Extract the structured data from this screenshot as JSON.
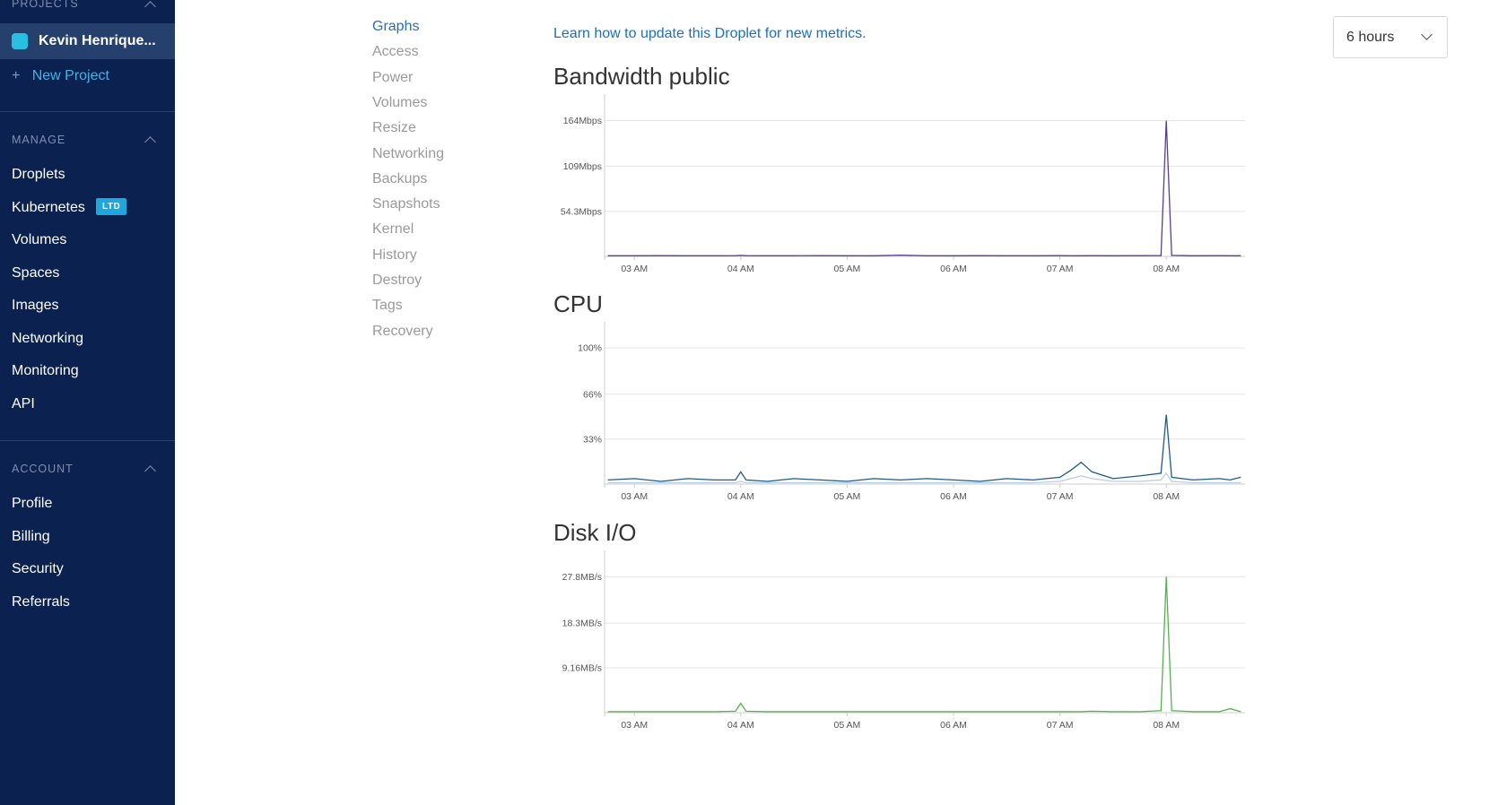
{
  "sidebar": {
    "projects_heading": "PROJECTS",
    "project_name": "Kevin Henrique...",
    "new_project": "New Project",
    "manage_heading": "MANAGE",
    "manage_items": [
      "Droplets",
      "Kubernetes",
      "Volumes",
      "Spaces",
      "Images",
      "Networking",
      "Monitoring",
      "API"
    ],
    "ltd_badge": "LTD",
    "account_heading": "ACCOUNT",
    "account_items": [
      "Profile",
      "Billing",
      "Security",
      "Referrals"
    ]
  },
  "secondary_nav": [
    "Graphs",
    "Access",
    "Power",
    "Volumes",
    "Resize",
    "Networking",
    "Backups",
    "Snapshots",
    "Kernel",
    "History",
    "Destroy",
    "Tags",
    "Recovery"
  ],
  "header": {
    "learn_link": "Learn how to update this Droplet for new metrics.",
    "range": "6 hours"
  },
  "chart_data": [
    {
      "type": "line",
      "title": "Bandwidth public",
      "x": [
        2.75,
        3,
        3.25,
        3.5,
        3.75,
        3.95,
        4,
        4.05,
        4.25,
        4.5,
        4.75,
        5,
        5.25,
        5.5,
        5.75,
        6,
        6.25,
        6.5,
        6.75,
        7,
        7.1,
        7.2,
        7.3,
        7.5,
        7.75,
        7.95,
        8,
        8.05,
        8.25,
        8.5,
        8.6,
        8.7
      ],
      "series": [
        {
          "color": "#5b3e8c",
          "values": [
            0.8,
            0.8,
            0.9,
            0.8,
            0.8,
            0.9,
            1.2,
            0.9,
            0.8,
            0.8,
            0.9,
            0.8,
            0.8,
            1.5,
            0.8,
            0.8,
            0.9,
            0.8,
            0.8,
            0.9,
            0.8,
            0.8,
            0.9,
            0.8,
            0.9,
            1,
            164,
            1.2,
            0.8,
            0.9,
            0.8,
            0.8
          ]
        }
      ],
      "xlim": [
        2.72,
        8.74
      ],
      "xticks": [
        {
          "value": 3,
          "label": "03 AM"
        },
        {
          "value": 4,
          "label": "04 AM"
        },
        {
          "value": 5,
          "label": "05 AM"
        },
        {
          "value": 6,
          "label": "06 AM"
        },
        {
          "value": 7,
          "label": "07 AM"
        },
        {
          "value": 8,
          "label": "08 AM"
        }
      ],
      "ylim": [
        0,
        181
      ],
      "yticks": [
        {
          "value": 54.3,
          "label": "54.3Mbps"
        },
        {
          "value": 109,
          "label": "109Mbps"
        },
        {
          "value": 164,
          "label": "164Mbps"
        }
      ],
      "grid": true
    },
    {
      "type": "line",
      "title": "CPU",
      "x": [
        2.75,
        3,
        3.25,
        3.5,
        3.75,
        3.95,
        4,
        4.05,
        4.25,
        4.5,
        4.75,
        5,
        5.25,
        5.5,
        5.75,
        6,
        6.25,
        6.5,
        6.75,
        7,
        7.1,
        7.2,
        7.3,
        7.5,
        7.75,
        7.95,
        8,
        8.05,
        8.25,
        8.5,
        8.6,
        8.7
      ],
      "series": [
        {
          "color": "#b8cde6",
          "values": [
            1,
            1,
            1,
            1,
            1,
            1,
            2,
            1,
            1,
            1,
            1,
            1,
            1,
            1,
            1,
            1,
            1,
            1,
            1,
            2,
            4,
            6,
            4,
            2,
            2,
            3,
            8,
            2,
            1,
            1,
            1,
            1
          ]
        },
        {
          "color": "#1f5a8c",
          "values": [
            3,
            4,
            2,
            4,
            3,
            3,
            9,
            3,
            2,
            4,
            3,
            2,
            4,
            3,
            4,
            3,
            2,
            4,
            3,
            5,
            10,
            16,
            9,
            4,
            6,
            8,
            51,
            5,
            3,
            4,
            3,
            5
          ]
        }
      ],
      "xlim": [
        2.72,
        8.74
      ],
      "xticks": [
        {
          "value": 3,
          "label": "03 AM"
        },
        {
          "value": 4,
          "label": "04 AM"
        },
        {
          "value": 5,
          "label": "05 AM"
        },
        {
          "value": 6,
          "label": "06 AM"
        },
        {
          "value": 7,
          "label": "07 AM"
        },
        {
          "value": 8,
          "label": "08 AM"
        }
      ],
      "ylim": [
        0,
        110
      ],
      "yticks": [
        {
          "value": 33,
          "label": "33%"
        },
        {
          "value": 66,
          "label": "66%"
        },
        {
          "value": 100,
          "label": "100%"
        }
      ],
      "grid": true
    },
    {
      "type": "line",
      "title": "Disk I/O",
      "x": [
        2.75,
        3,
        3.25,
        3.5,
        3.75,
        3.95,
        4,
        4.05,
        4.25,
        4.5,
        4.75,
        5,
        5.25,
        5.5,
        5.75,
        6,
        6.25,
        6.5,
        6.75,
        7,
        7.1,
        7.2,
        7.3,
        7.5,
        7.75,
        7.95,
        8,
        8.05,
        8.25,
        8.5,
        8.6,
        8.7
      ],
      "series": [
        {
          "color": "#57b04f",
          "values": [
            0.2,
            0.2,
            0.2,
            0.2,
            0.2,
            0.3,
            1.9,
            0.3,
            0.2,
            0.2,
            0.2,
            0.2,
            0.2,
            0.2,
            0.2,
            0.2,
            0.2,
            0.2,
            0.2,
            0.2,
            0.2,
            0.2,
            0.3,
            0.2,
            0.2,
            0.4,
            27.8,
            0.4,
            0.2,
            0.2,
            0.8,
            0.2
          ]
        }
      ],
      "xlim": [
        2.72,
        8.74
      ],
      "xticks": [
        {
          "value": 3,
          "label": "03 AM"
        },
        {
          "value": 4,
          "label": "04 AM"
        },
        {
          "value": 5,
          "label": "05 AM"
        },
        {
          "value": 6,
          "label": "06 AM"
        },
        {
          "value": 7,
          "label": "07 AM"
        },
        {
          "value": 8,
          "label": "08 AM"
        }
      ],
      "ylim": [
        0,
        30.6
      ],
      "yticks": [
        {
          "value": 9.16,
          "label": "9.16MB/s"
        },
        {
          "value": 18.3,
          "label": "18.3MB/s"
        },
        {
          "value": 27.8,
          "label": "27.8MB/s"
        }
      ],
      "grid": true
    }
  ]
}
